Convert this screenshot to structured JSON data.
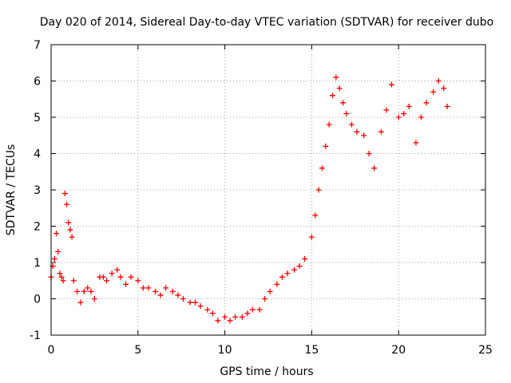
{
  "chart_data": {
    "type": "scatter",
    "title": "Day 020 of 2014, Sidereal Day-to-day VTEC variation (SDTVAR) for receiver dubo",
    "xlabel": "GPS time / hours",
    "ylabel": "SDTVAR / TECUs",
    "xlim": [
      0,
      25
    ],
    "ylim": [
      -1,
      7
    ],
    "xticks": [
      0,
      5,
      10,
      15,
      20,
      25
    ],
    "yticks": [
      -1,
      0,
      1,
      2,
      3,
      4,
      5,
      6,
      7
    ],
    "xtick_labels": [
      "0",
      "5",
      "10",
      "15",
      "20",
      "25"
    ],
    "ytick_labels": [
      "-1",
      "0",
      "1",
      "2",
      "3",
      "4",
      "5",
      "6",
      "7"
    ],
    "grid": true,
    "marker": "+",
    "series": [
      {
        "name": "SDTVAR",
        "color": "#ff0000",
        "x": [
          0.0,
          0.1,
          0.2,
          0.3,
          0.4,
          0.5,
          0.6,
          0.7,
          0.8,
          0.9,
          1.0,
          1.1,
          1.2,
          1.3,
          1.5,
          1.7,
          1.9,
          2.1,
          2.3,
          2.5,
          2.8,
          3.0,
          3.2,
          3.5,
          3.8,
          4.0,
          4.3,
          4.6,
          5.0,
          5.3,
          5.6,
          6.0,
          6.3,
          6.6,
          7.0,
          7.3,
          7.6,
          8.0,
          8.3,
          8.6,
          9.0,
          9.3,
          9.6,
          10.0,
          10.3,
          10.6,
          11.0,
          11.3,
          11.6,
          12.0,
          12.3,
          12.6,
          13.0,
          13.3,
          13.6,
          14.0,
          14.3,
          14.6,
          15.0,
          15.2,
          15.4,
          15.6,
          15.8,
          16.0,
          16.2,
          16.4,
          16.6,
          16.8,
          17.0,
          17.3,
          17.6,
          18.0,
          18.3,
          18.6,
          19.0,
          19.3,
          19.6,
          20.0,
          20.3,
          20.6,
          21.0,
          21.3,
          21.6,
          22.0,
          22.3,
          22.6,
          22.8
        ],
        "y": [
          0.6,
          0.9,
          1.1,
          1.8,
          1.3,
          0.7,
          0.6,
          0.5,
          2.9,
          2.6,
          2.1,
          1.9,
          1.7,
          0.5,
          0.2,
          -0.1,
          0.2,
          0.3,
          0.2,
          0.0,
          0.6,
          0.6,
          0.5,
          0.7,
          0.8,
          0.6,
          0.4,
          0.6,
          0.5,
          0.3,
          0.3,
          0.2,
          0.1,
          0.3,
          0.2,
          0.1,
          0.0,
          -0.1,
          -0.1,
          -0.2,
          -0.3,
          -0.4,
          -0.6,
          -0.5,
          -0.6,
          -0.5,
          -0.5,
          -0.4,
          -0.3,
          -0.3,
          0.0,
          0.2,
          0.4,
          0.6,
          0.7,
          0.8,
          0.9,
          1.1,
          1.7,
          2.3,
          3.0,
          3.6,
          4.2,
          4.8,
          5.6,
          6.1,
          5.8,
          5.4,
          5.1,
          4.8,
          4.6,
          4.5,
          4.0,
          3.6,
          4.6,
          5.2,
          5.9,
          5.0,
          5.1,
          5.3,
          4.3,
          5.0,
          5.4,
          5.7,
          6.0,
          5.8,
          5.3
        ]
      }
    ]
  }
}
